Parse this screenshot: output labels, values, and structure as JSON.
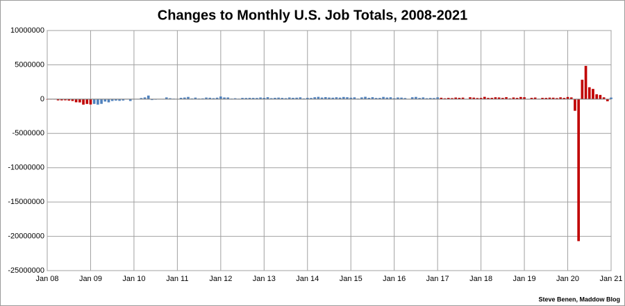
{
  "chart_data": {
    "type": "bar",
    "title": "Changes to Monthly U.S. Job Totals, 2008-2021",
    "credit": "Steve Benen, Maddow Blog",
    "categories": [
      "Jan 08",
      null,
      null,
      null,
      null,
      null,
      null,
      null,
      null,
      null,
      null,
      null,
      "Jan 09",
      null,
      null,
      null,
      null,
      null,
      null,
      null,
      null,
      null,
      null,
      null,
      "Jan 10",
      null,
      null,
      null,
      null,
      null,
      null,
      null,
      null,
      null,
      null,
      null,
      "Jan 11",
      null,
      null,
      null,
      null,
      null,
      null,
      null,
      null,
      null,
      null,
      null,
      "Jan 12",
      null,
      null,
      null,
      null,
      null,
      null,
      null,
      null,
      null,
      null,
      null,
      "Jan 13",
      null,
      null,
      null,
      null,
      null,
      null,
      null,
      null,
      null,
      null,
      null,
      "Jan 14",
      null,
      null,
      null,
      null,
      null,
      null,
      null,
      null,
      null,
      null,
      null,
      "Jan 15",
      null,
      null,
      null,
      null,
      null,
      null,
      null,
      null,
      null,
      null,
      null,
      "Jan 16",
      null,
      null,
      null,
      null,
      null,
      null,
      null,
      null,
      null,
      null,
      null,
      "Jan 17",
      null,
      null,
      null,
      null,
      null,
      null,
      null,
      null,
      null,
      null,
      null,
      "Jan 18",
      null,
      null,
      null,
      null,
      null,
      null,
      null,
      null,
      null,
      null,
      null,
      "Jan 19",
      null,
      null,
      null,
      null,
      null,
      null,
      null,
      null,
      null,
      null,
      null,
      "Jan 20",
      null,
      null,
      null,
      null,
      null,
      null,
      null,
      null,
      null,
      null,
      null,
      "Jan 21"
    ],
    "values": [
      -10000,
      -50000,
      -48000,
      -180000,
      -180000,
      -170000,
      -210000,
      -270000,
      -460000,
      -480000,
      -800000,
      -700000,
      -780000,
      -700000,
      -800000,
      -690000,
      -350000,
      -470000,
      -270000,
      -210000,
      -250000,
      -200000,
      0,
      -270000,
      -10000,
      -40000,
      160000,
      250000,
      520000,
      -130000,
      -80000,
      -50000,
      -40000,
      250000,
      130000,
      70000,
      40000,
      190000,
      230000,
      320000,
      100000,
      220000,
      90000,
      110000,
      230000,
      200000,
      140000,
      210000,
      380000,
      240000,
      240000,
      80000,
      130000,
      70000,
      180000,
      170000,
      190000,
      180000,
      170000,
      240000,
      190000,
      280000,
      140000,
      190000,
      220000,
      180000,
      140000,
      240000,
      190000,
      210000,
      260000,
      100000,
      190000,
      170000,
      270000,
      330000,
      230000,
      290000,
      230000,
      210000,
      270000,
      220000,
      310000,
      270000,
      210000,
      260000,
      80000,
      250000,
      340000,
      190000,
      280000,
      170000,
      180000,
      320000,
      230000,
      270000,
      130000,
      240000,
      220000,
      160000,
      40000,
      270000,
      320000,
      170000,
      250000,
      130000,
      170000,
      160000,
      260000,
      200000,
      120000,
      180000,
      150000,
      230000,
      190000,
      220000,
      20000,
      270000,
      220000,
      160000,
      180000,
      330000,
      180000,
      190000,
      270000,
      240000,
      180000,
      280000,
      110000,
      240000,
      180000,
      310000,
      270000,
      1000,
      190000,
      230000,
      60000,
      190000,
      180000,
      220000,
      210000,
      150000,
      260000,
      180000,
      310000,
      250000,
      -1700000,
      -20700000,
      2830000,
      4850000,
      1730000,
      1490000,
      710000,
      610000,
      260000,
      -310000,
      230000
    ],
    "colors": [
      "#c00000",
      "#c00000",
      "#c00000",
      "#c00000",
      "#c00000",
      "#c00000",
      "#c00000",
      "#c00000",
      "#c00000",
      "#c00000",
      "#c00000",
      "#c00000",
      "#c00000",
      "#4f81bd",
      "#4f81bd",
      "#4f81bd",
      "#4f81bd",
      "#4f81bd",
      "#4f81bd",
      "#4f81bd",
      "#4f81bd",
      "#4f81bd",
      "#4f81bd",
      "#4f81bd",
      "#4f81bd",
      "#4f81bd",
      "#4f81bd",
      "#4f81bd",
      "#4f81bd",
      "#4f81bd",
      "#4f81bd",
      "#4f81bd",
      "#4f81bd",
      "#4f81bd",
      "#4f81bd",
      "#4f81bd",
      "#4f81bd",
      "#4f81bd",
      "#4f81bd",
      "#4f81bd",
      "#4f81bd",
      "#4f81bd",
      "#4f81bd",
      "#4f81bd",
      "#4f81bd",
      "#4f81bd",
      "#4f81bd",
      "#4f81bd",
      "#4f81bd",
      "#4f81bd",
      "#4f81bd",
      "#4f81bd",
      "#4f81bd",
      "#4f81bd",
      "#4f81bd",
      "#4f81bd",
      "#4f81bd",
      "#4f81bd",
      "#4f81bd",
      "#4f81bd",
      "#4f81bd",
      "#4f81bd",
      "#4f81bd",
      "#4f81bd",
      "#4f81bd",
      "#4f81bd",
      "#4f81bd",
      "#4f81bd",
      "#4f81bd",
      "#4f81bd",
      "#4f81bd",
      "#4f81bd",
      "#4f81bd",
      "#4f81bd",
      "#4f81bd",
      "#4f81bd",
      "#4f81bd",
      "#4f81bd",
      "#4f81bd",
      "#4f81bd",
      "#4f81bd",
      "#4f81bd",
      "#4f81bd",
      "#4f81bd",
      "#4f81bd",
      "#4f81bd",
      "#4f81bd",
      "#4f81bd",
      "#4f81bd",
      "#4f81bd",
      "#4f81bd",
      "#4f81bd",
      "#4f81bd",
      "#4f81bd",
      "#4f81bd",
      "#4f81bd",
      "#4f81bd",
      "#4f81bd",
      "#4f81bd",
      "#4f81bd",
      "#4f81bd",
      "#4f81bd",
      "#4f81bd",
      "#4f81bd",
      "#4f81bd",
      "#4f81bd",
      "#4f81bd",
      "#4f81bd",
      "#4f81bd",
      "#c00000",
      "#c00000",
      "#c00000",
      "#c00000",
      "#c00000",
      "#c00000",
      "#c00000",
      "#c00000",
      "#c00000",
      "#c00000",
      "#c00000",
      "#c00000",
      "#c00000",
      "#c00000",
      "#c00000",
      "#c00000",
      "#c00000",
      "#c00000",
      "#c00000",
      "#c00000",
      "#c00000",
      "#c00000",
      "#c00000",
      "#c00000",
      "#c00000",
      "#c00000",
      "#c00000",
      "#c00000",
      "#c00000",
      "#c00000",
      "#c00000",
      "#c00000",
      "#c00000",
      "#c00000",
      "#c00000",
      "#c00000",
      "#c00000",
      "#c00000",
      "#c00000",
      "#c00000",
      "#c00000",
      "#c00000",
      "#c00000",
      "#c00000",
      "#c00000",
      "#c00000",
      "#c00000",
      "#4f81bd"
    ],
    "ylim": [
      -25000000,
      10000000
    ],
    "yticks": [
      -25000000,
      -20000000,
      -15000000,
      -10000000,
      -5000000,
      0,
      5000000,
      10000000
    ],
    "grid": true
  }
}
